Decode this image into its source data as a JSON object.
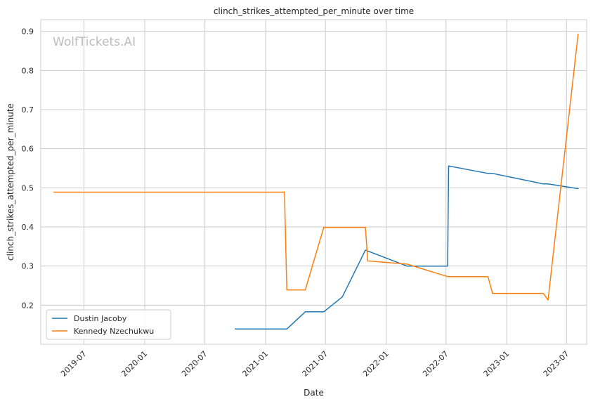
{
  "chart_data": {
    "type": "line",
    "title": "clinch_strikes_attempted_per_minute over time",
    "xlabel": "Date",
    "ylabel": "clinch_strikes_attempted_per_minute",
    "watermark": "WolfTickets.AI",
    "x_ticks": [
      "2019-07",
      "2020-01",
      "2020-07",
      "2021-01",
      "2021-07",
      "2022-01",
      "2022-07",
      "2023-01",
      "2023-07"
    ],
    "y_ticks": [
      "0.2",
      "0.3",
      "0.4",
      "0.5",
      "0.6",
      "0.7",
      "0.8",
      "0.9"
    ],
    "xlim": [
      "2019-02-20",
      "2023-08-31"
    ],
    "ylim": [
      0.1,
      0.93
    ],
    "grid": true,
    "legend_position": "lower-left",
    "series": [
      {
        "name": "Dustin Jacoby",
        "color": "#1f77b4",
        "points": [
          [
            "2020-10-01",
            0.139
          ],
          [
            "2021-03-06",
            0.139
          ],
          [
            "2021-05-01",
            0.183
          ],
          [
            "2021-06-26",
            0.183
          ],
          [
            "2021-08-21",
            0.221
          ],
          [
            "2021-10-30",
            0.341
          ],
          [
            "2022-03-05",
            0.3
          ],
          [
            "2022-07-06",
            0.3
          ],
          [
            "2022-07-09",
            0.556
          ],
          [
            "2022-11-05",
            0.537
          ],
          [
            "2022-11-19",
            0.537
          ],
          [
            "2023-04-22",
            0.51
          ],
          [
            "2023-05-06",
            0.51
          ],
          [
            "2023-08-05",
            0.498
          ]
        ]
      },
      {
        "name": "Kennedy Nzechukwu",
        "color": "#ff7f0e",
        "points": [
          [
            "2019-04-01",
            0.489
          ],
          [
            "2021-02-27",
            0.489
          ],
          [
            "2021-03-06",
            0.239
          ],
          [
            "2021-05-01",
            0.239
          ],
          [
            "2021-06-26",
            0.399
          ],
          [
            "2021-10-30",
            0.399
          ],
          [
            "2021-11-06",
            0.313
          ],
          [
            "2022-03-05",
            0.305
          ],
          [
            "2022-07-06",
            0.273
          ],
          [
            "2022-11-05",
            0.273
          ],
          [
            "2022-11-19",
            0.23
          ],
          [
            "2023-04-22",
            0.23
          ],
          [
            "2023-05-06",
            0.213
          ],
          [
            "2023-08-05",
            0.893
          ]
        ]
      }
    ]
  }
}
